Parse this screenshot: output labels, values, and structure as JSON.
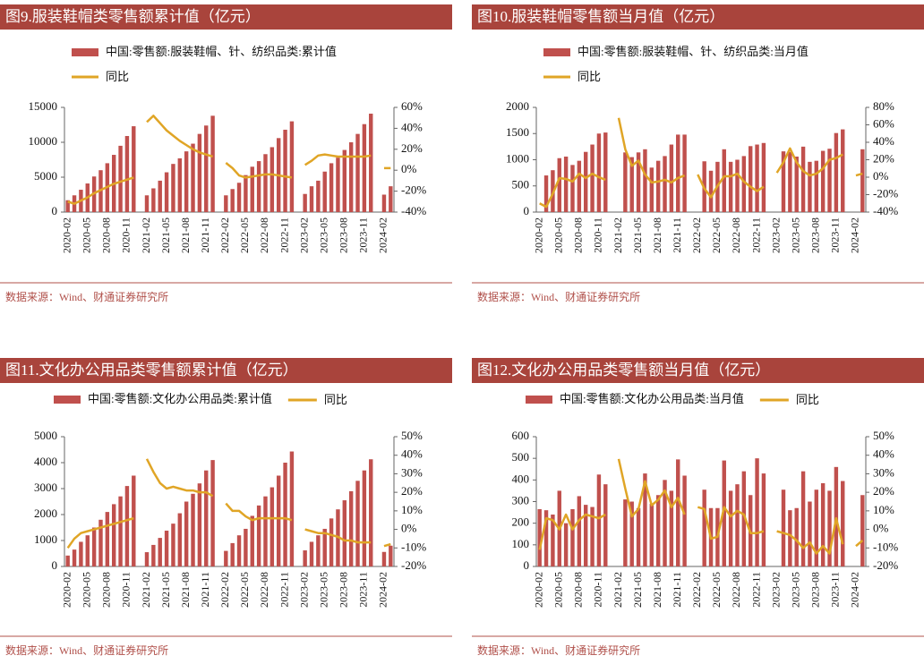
{
  "chart_data": [
    {
      "type": "combo",
      "title": "图9.服装鞋帽类零售额累计值（亿元）",
      "source": "数据来源：Wind、财通证券研究所",
      "categories": [
        "2020-02",
        null,
        null,
        "2020-05",
        null,
        null,
        "2020-08",
        null,
        null,
        "2020-11",
        null,
        null,
        "2021-02",
        null,
        null,
        "2021-05",
        null,
        null,
        "2021-08",
        null,
        null,
        "2021-11",
        null,
        null,
        "2022-02",
        null,
        null,
        "2022-05",
        null,
        null,
        "2022-08",
        null,
        null,
        "2022-11",
        null,
        null,
        "2023-02",
        null,
        null,
        "2023-05",
        null,
        null,
        "2023-08",
        null,
        null,
        "2023-11",
        null,
        null,
        "2024-02",
        null
      ],
      "series": [
        {
          "name": "中国:零售额:服装鞋帽、针、纺织品类:累计值",
          "type": "bar",
          "color": "#c0504d",
          "values": [
            1700,
            2400,
            3200,
            4100,
            5100,
            6000,
            7000,
            8200,
            9500,
            10900,
            12300,
            null,
            2400,
            3400,
            4500,
            5700,
            6900,
            7700,
            8700,
            9800,
            11200,
            12400,
            13800,
            null,
            2400,
            3300,
            4200,
            5300,
            6500,
            7300,
            8300,
            9300,
            10600,
            11800,
            13000,
            null,
            2600,
            3700,
            4500,
            5800,
            7000,
            7800,
            8900,
            10000,
            11200,
            12600,
            14100,
            null,
            2500,
            3700
          ]
        },
        {
          "name": "同比",
          "type": "line",
          "axis": "y2",
          "color": "#e0a526",
          "values": [
            -30,
            -32,
            -29,
            -26,
            -22,
            -19,
            -16,
            -13,
            -11,
            -9,
            -7,
            null,
            46,
            52,
            45,
            38,
            33,
            28,
            24,
            20,
            17,
            15,
            13,
            null,
            7,
            2,
            -5,
            -7,
            -6,
            -5,
            -4,
            -4,
            -5,
            -6,
            -7,
            null,
            5,
            9,
            14,
            15,
            14,
            13,
            13,
            13,
            13,
            13,
            14,
            null,
            2,
            2
          ]
        }
      ],
      "ylim": [
        0,
        15000
      ],
      "yticks": [
        0,
        5000,
        10000,
        15000
      ],
      "y2lim": [
        -40,
        60
      ],
      "y2ticks": [
        {
          "value": -40,
          "label": "-40%"
        },
        {
          "value": -20,
          "label": "-20%"
        },
        {
          "value": 0,
          "label": "0%"
        },
        {
          "value": 20,
          "label": "20%"
        },
        {
          "value": 40,
          "label": "40%"
        },
        {
          "value": 60,
          "label": "60%"
        }
      ]
    },
    {
      "type": "combo",
      "title": "图10.服装鞋帽零售额当月值（亿元）",
      "source": "数据来源：Wind、财通证券研究所",
      "categories": [
        "2020-02",
        null,
        null,
        "2020-05",
        null,
        null,
        "2020-08",
        null,
        null,
        "2020-11",
        null,
        null,
        "2021-02",
        null,
        null,
        "2021-05",
        null,
        null,
        "2021-08",
        null,
        null,
        "2021-11",
        null,
        null,
        "2022-02",
        null,
        null,
        "2022-05",
        null,
        null,
        "2022-08",
        null,
        null,
        "2022-11",
        null,
        null,
        "2023-02",
        null,
        null,
        "2023-05",
        null,
        null,
        "2023-08",
        null,
        null,
        "2023-11",
        null,
        null,
        "2024-02",
        null
      ],
      "series": [
        {
          "name": "中国:零售额:服装鞋帽、针、纺织品类:当月值",
          "type": "bar",
          "color": "#c0504d",
          "values": [
            null,
            700,
            800,
            1030,
            1060,
            900,
            980,
            1150,
            1290,
            1500,
            1520,
            null,
            null,
            1140,
            1050,
            1140,
            1200,
            850,
            980,
            1070,
            1290,
            1480,
            1480,
            null,
            null,
            970,
            790,
            960,
            1200,
            960,
            1000,
            1070,
            1260,
            1290,
            1320,
            null,
            null,
            1160,
            1150,
            1060,
            1250,
            960,
            980,
            1170,
            1210,
            1510,
            1580,
            null,
            null,
            1200
          ]
        },
        {
          "name": "同比",
          "type": "line",
          "axis": "y2",
          "color": "#e0a526",
          "values": [
            -30,
            -34,
            -19,
            -1,
            -2,
            -5,
            4,
            -1,
            4,
            0,
            -3,
            null,
            68,
            32,
            13,
            19,
            3,
            -6,
            -5,
            -3,
            -6,
            -1,
            2,
            null,
            3,
            -13,
            -23,
            -10,
            1,
            1,
            4,
            -5,
            -11,
            -16,
            -11,
            null,
            5,
            17,
            33,
            17,
            7,
            2,
            4,
            10,
            20,
            22,
            26,
            null,
            2,
            4
          ]
        }
      ],
      "ylim": [
        0,
        2000
      ],
      "yticks": [
        0,
        500,
        1000,
        1500,
        2000
      ],
      "y2lim": [
        -40,
        80
      ],
      "y2ticks": [
        {
          "value": -40,
          "label": "-40%"
        },
        {
          "value": -20,
          "label": "-20%"
        },
        {
          "value": 0,
          "label": "0%"
        },
        {
          "value": 20,
          "label": "20%"
        },
        {
          "value": 40,
          "label": "40%"
        },
        {
          "value": 60,
          "label": "60%"
        },
        {
          "value": 80,
          "label": "80%"
        }
      ]
    },
    {
      "type": "combo",
      "title": "图11.文化办公用品类零售额累计值（亿元）",
      "source": "数据来源：Wind、财通证券研究所",
      "categories": [
        "2020-02",
        null,
        null,
        "2020-05",
        null,
        null,
        "2020-08",
        null,
        null,
        "2020-11",
        null,
        null,
        "2021-02",
        null,
        null,
        "2021-05",
        null,
        null,
        "2021-08",
        null,
        null,
        "2021-11",
        null,
        null,
        "2022-02",
        null,
        null,
        "2022-05",
        null,
        null,
        "2022-08",
        null,
        null,
        "2022-11",
        null,
        null,
        "2023-02",
        null,
        null,
        "2023-05",
        null,
        null,
        "2023-08",
        null,
        null,
        "2023-11",
        null,
        null,
        "2024-02",
        null
      ],
      "series": [
        {
          "name": "中国:零售额:文化办公用品类:累计值",
          "type": "bar",
          "color": "#c0504d",
          "values": [
            420,
            650,
            950,
            1200,
            1500,
            1800,
            2100,
            2400,
            2700,
            3100,
            3500,
            null,
            550,
            830,
            1100,
            1380,
            1650,
            2050,
            2500,
            2800,
            3200,
            3700,
            4100,
            null,
            600,
            900,
            1200,
            1450,
            1950,
            2350,
            2700,
            3050,
            3500,
            4000,
            4430,
            null,
            620,
            950,
            1200,
            1450,
            1850,
            2200,
            2550,
            2900,
            3300,
            3700,
            4130,
            null,
            560,
            800
          ]
        },
        {
          "name": "同比",
          "type": "line",
          "axis": "y2",
          "color": "#e0a526",
          "values": [
            -10,
            -5,
            -2,
            -1,
            0,
            1,
            2,
            3,
            4,
            5,
            6,
            null,
            38,
            31,
            25,
            22,
            23,
            22,
            21,
            21,
            20,
            20,
            18,
            null,
            14,
            10,
            10,
            7,
            5,
            6,
            6,
            6,
            6,
            6,
            5,
            null,
            0,
            -1,
            -2,
            -2,
            -3,
            -4,
            -6,
            -6,
            -7,
            -7,
            -7,
            null,
            -9,
            -8
          ]
        }
      ],
      "ylim": [
        0,
        5000
      ],
      "yticks": [
        0,
        1000,
        2000,
        3000,
        4000,
        5000
      ],
      "y2lim": [
        -20,
        50
      ],
      "y2ticks": [
        {
          "value": -20,
          "label": "-20%"
        },
        {
          "value": -10,
          "label": "-10%"
        },
        {
          "value": 0,
          "label": "0%"
        },
        {
          "value": 10,
          "label": "10%"
        },
        {
          "value": 20,
          "label": "20%"
        },
        {
          "value": 30,
          "label": "30%"
        },
        {
          "value": 40,
          "label": "40%"
        },
        {
          "value": 50,
          "label": "50%"
        }
      ]
    },
    {
      "type": "combo",
      "title": "图12.文化办公用品类零售额当月值（亿元）",
      "source": "数据来源：Wind、财通证券研究所",
      "categories": [
        "2020-02",
        null,
        null,
        "2020-05",
        null,
        null,
        "2020-08",
        null,
        null,
        "2020-11",
        null,
        null,
        "2021-02",
        null,
        null,
        "2021-05",
        null,
        null,
        "2021-08",
        null,
        null,
        "2021-11",
        null,
        null,
        "2022-02",
        null,
        null,
        "2022-05",
        null,
        null,
        "2022-08",
        null,
        null,
        "2022-11",
        null,
        null,
        "2023-02",
        null,
        null,
        "2023-05",
        null,
        null,
        "2023-08",
        null,
        null,
        "2023-11",
        null,
        null,
        "2024-02",
        null
      ],
      "series": [
        {
          "name": "中国:零售额:文化办公用品类:当月值",
          "type": "bar",
          "color": "#c0504d",
          "values": [
            265,
            260,
            240,
            350,
            200,
            265,
            325,
            285,
            275,
            425,
            380,
            null,
            null,
            310,
            300,
            270,
            430,
            290,
            330,
            400,
            350,
            495,
            420,
            null,
            null,
            355,
            270,
            270,
            490,
            350,
            380,
            440,
            330,
            500,
            430,
            null,
            null,
            355,
            260,
            270,
            440,
            300,
            355,
            385,
            350,
            460,
            395,
            null,
            null,
            330
          ]
        },
        {
          "name": "同比",
          "type": "line",
          "axis": "y2",
          "color": "#e0a526",
          "values": [
            -11,
            6,
            5,
            0,
            8,
            0,
            5,
            8,
            7,
            6,
            8,
            null,
            38,
            22,
            7,
            11,
            26,
            13,
            16,
            21,
            12,
            17,
            8,
            null,
            12,
            11,
            -5,
            -4,
            12,
            7,
            10,
            8,
            -2,
            -2,
            -1,
            null,
            -1,
            -2,
            -3,
            -6,
            -10,
            -7,
            -13,
            -9,
            -13,
            6,
            -8,
            null,
            -9,
            -6
          ]
        }
      ],
      "ylim": [
        0,
        600
      ],
      "yticks": [
        0,
        100,
        200,
        300,
        400,
        500,
        600
      ],
      "y2lim": [
        -20,
        50
      ],
      "y2ticks": [
        {
          "value": -20,
          "label": "-20%"
        },
        {
          "value": -10,
          "label": "-10%"
        },
        {
          "value": 0,
          "label": "0%"
        },
        {
          "value": 10,
          "label": "10%"
        },
        {
          "value": 20,
          "label": "20%"
        },
        {
          "value": 30,
          "label": "30%"
        },
        {
          "value": 40,
          "label": "40%"
        },
        {
          "value": 50,
          "label": "50%"
        }
      ]
    }
  ]
}
